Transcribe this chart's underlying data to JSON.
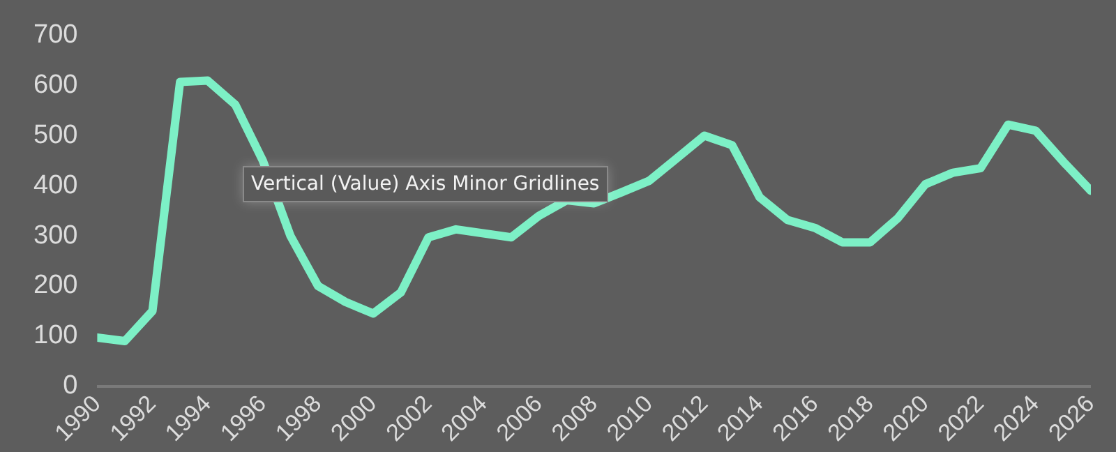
{
  "chart_data": {
    "type": "line",
    "x": [
      1990,
      1991,
      1992,
      1993,
      1994,
      1995,
      1996,
      1997,
      1998,
      1999,
      2000,
      2001,
      2002,
      2003,
      2004,
      2005,
      2006,
      2007,
      2008,
      2009,
      2010,
      2011,
      2012,
      2013,
      2014,
      2015,
      2016,
      2017,
      2018,
      2019,
      2020,
      2021,
      2022,
      2023,
      2024,
      2025,
      2026
    ],
    "series": [
      {
        "color": "#7df0c6",
        "values": [
          97,
          90,
          150,
          607,
          610,
          562,
          450,
          300,
          200,
          168,
          145,
          187,
          297,
          313,
          null,
          297,
          340,
          371,
          365,
          387,
          410,
          455,
          500,
          481,
          377,
          332,
          316,
          287,
          287,
          335,
          403,
          426,
          435,
          522,
          510,
          448,
          390
        ]
      }
    ],
    "xlim": [
      1990,
      2026
    ],
    "xticks": [
      1990,
      1992,
      1994,
      1996,
      1998,
      2000,
      2002,
      2004,
      2006,
      2008,
      2010,
      2012,
      2014,
      2016,
      2018,
      2020,
      2022,
      2024,
      2026
    ],
    "ylim": [
      0,
      700
    ],
    "yticks": [
      0,
      100,
      200,
      300,
      400,
      500,
      600,
      700
    ],
    "grid": false,
    "legend": false,
    "marker": "none",
    "line_style": "solid",
    "annotations": [
      "Vertical (Value) Axis Minor Gridlines"
    ]
  }
}
